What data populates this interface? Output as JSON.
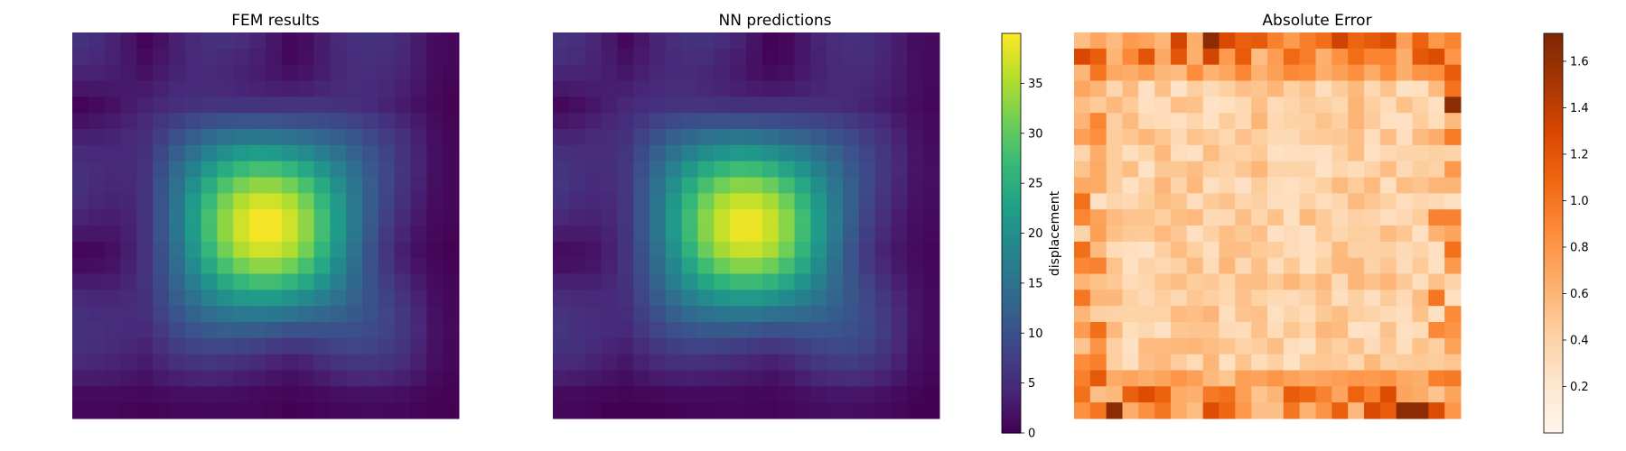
{
  "chart_data": [
    {
      "type": "heatmap",
      "title": "FEM results",
      "grid": false,
      "axes_visible": false,
      "size": [
        24,
        24
      ],
      "field": "sin(pi*x)*sin(pi*y) with cos-ripple, peak near centre",
      "colormap": "viridis",
      "vmin": 0,
      "vmax": 40
    },
    {
      "type": "heatmap",
      "title": "NN predictions",
      "grid": false,
      "axes_visible": false,
      "size": [
        24,
        24
      ],
      "colormap": "viridis",
      "vmin": 0,
      "vmax": 40,
      "colorbar": {
        "label": "displacement",
        "ticks": [
          "0",
          "5",
          "10",
          "15",
          "20",
          "25",
          "30",
          "35"
        ],
        "tick_values": [
          0,
          5,
          10,
          15,
          20,
          25,
          30,
          35
        ],
        "position": "right"
      }
    },
    {
      "type": "heatmap",
      "title": "Absolute Error",
      "grid": false,
      "axes_visible": false,
      "size": [
        24,
        24
      ],
      "colormap": "oranges",
      "vmin": 0,
      "vmax": 1.72,
      "colorbar": {
        "label": "",
        "ticks": [
          "0.2",
          "0.4",
          "0.6",
          "0.8",
          "1.0",
          "1.2",
          "1.4",
          "1.6"
        ],
        "tick_values": [
          0.2,
          0.4,
          0.6,
          0.8,
          1.0,
          1.2,
          1.4,
          1.6
        ],
        "position": "right"
      }
    }
  ],
  "colors": {
    "viridis": [
      "#440154",
      "#482878",
      "#3e4989",
      "#31688e",
      "#26828e",
      "#1f9e89",
      "#35b779",
      "#6ece58",
      "#b5de2b",
      "#fde725"
    ],
    "oranges": [
      "#fff5eb",
      "#fee6ce",
      "#fdd0a2",
      "#fdae6b",
      "#fd8d3c",
      "#f16913",
      "#d94801",
      "#a63603",
      "#7f2704"
    ]
  }
}
